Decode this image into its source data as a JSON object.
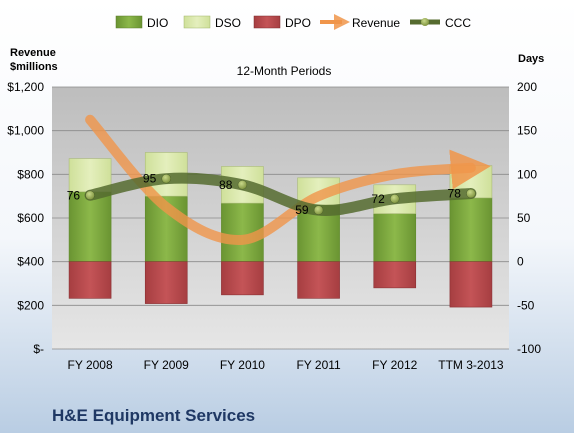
{
  "chart_data": {
    "type": "bar",
    "subtitle": "12-Month Periods",
    "company": "H&E Equipment Services",
    "y_left_label_line1": "Revenue",
    "y_left_label_line2": "$millions",
    "y_right_label": "Days",
    "categories": [
      "FY 2008",
      "FY 2009",
      "FY 2010",
      "FY 2011",
      "FY 2012",
      "TTM 3-2013"
    ],
    "y_left_ticks": [
      "$-",
      "$200",
      "$400",
      "$600",
      "$800",
      "$1,000",
      "$1,200"
    ],
    "y_left_range": [
      0,
      1200
    ],
    "y_right_ticks": [
      "-100",
      "-50",
      "0",
      "50",
      "100",
      "150",
      "200"
    ],
    "y_right_range": [
      -100,
      200
    ],
    "series": [
      {
        "name": "DIO",
        "axis": "days",
        "values": [
          80,
          75,
          67,
          65,
          55,
          73
        ]
      },
      {
        "name": "DSO",
        "axis": "days",
        "values": [
          38,
          50,
          42,
          31,
          33,
          37
        ]
      },
      {
        "name": "DPO",
        "axis": "days",
        "values": [
          -42,
          -48,
          -38,
          -42,
          -30,
          -52
        ]
      },
      {
        "name": "Revenue",
        "axis": "revenue",
        "values": [
          1050,
          650,
          500,
          700,
          800,
          830
        ]
      },
      {
        "name": "CCC",
        "axis": "days",
        "values": [
          76,
          95,
          88,
          59,
          72,
          78
        ]
      }
    ],
    "ccc_labels": [
      "76",
      "95",
      "88",
      "59",
      "72",
      "78"
    ],
    "colors": {
      "dio": "#7aa43a",
      "dso": "#d9e8a8",
      "dpo": "#b8474a",
      "revenue": "#f0954a",
      "ccc": "#556b2f",
      "plot_bg": "#cfcfcf",
      "company": "#1f3864"
    },
    "legend_position": "top",
    "grid": true
  }
}
